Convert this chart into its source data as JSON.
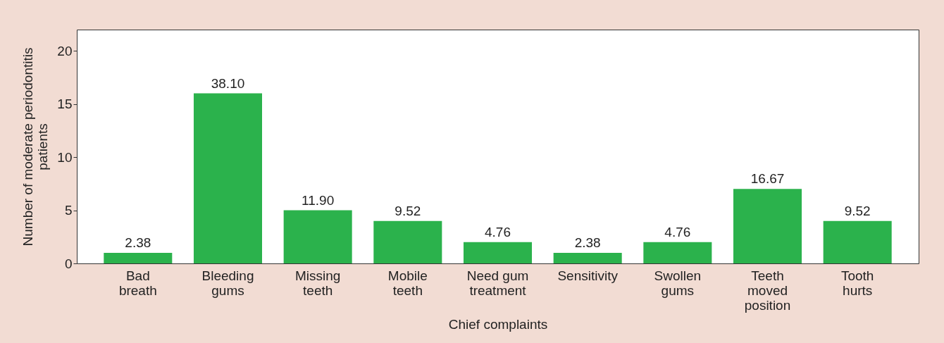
{
  "chart_data": {
    "type": "bar",
    "xlabel": "Chief complaints",
    "ylabel": "Number of moderate periodontitis patients",
    "categories": [
      "Bad breath",
      "Bleeding gums",
      "Missing teeth",
      "Mobile teeth",
      "Need gum treatment",
      "Sensitivity",
      "Swollen gums",
      "Teeth moved position",
      "Tooth hurts"
    ],
    "values": [
      1,
      16,
      5,
      4,
      2,
      1,
      2,
      7,
      4
    ],
    "annotations": [
      {
        "text": "2.38",
        "x": "Bad breath",
        "y": 1
      },
      {
        "text": "38.10",
        "x": "Bleeding gums",
        "y": 16
      },
      {
        "text": "11.90",
        "x": "Missing teeth",
        "y": 5
      },
      {
        "text": "9.52",
        "x": "Mobile teeth",
        "y": 4
      },
      {
        "text": "4.76",
        "x": "Need gum treatment",
        "y": 2
      },
      {
        "text": "2.38",
        "x": "Sensitivity",
        "y": 1
      },
      {
        "text": "4.76",
        "x": "Swollen gums",
        "y": 2
      },
      {
        "text": "16.67",
        "x": "Teeth moved position",
        "y": 7
      },
      {
        "text": "9.52",
        "x": "Tooth hurts",
        "y": 4
      }
    ],
    "color": "#2bb24c",
    "ylim": [
      0,
      22
    ],
    "yticks": [
      0,
      5,
      10,
      15,
      20
    ],
    "grid": false
  }
}
